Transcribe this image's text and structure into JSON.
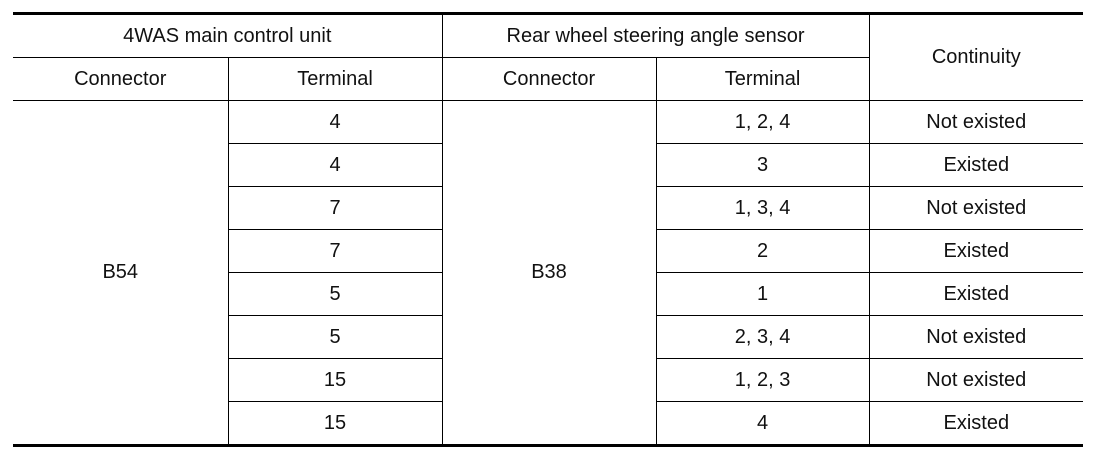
{
  "table": {
    "header": {
      "groups": [
        "4WAS main control unit",
        "Rear wheel steering angle sensor"
      ],
      "continuity": "Continuity",
      "columns": [
        "Connector",
        "Terminal",
        "Connector",
        "Terminal"
      ]
    },
    "main_connector": "B54",
    "sensor_connector": "B38",
    "rows": [
      [
        "4",
        "1, 2, 4",
        "Not existed"
      ],
      [
        "4",
        "3",
        "Existed"
      ],
      [
        "7",
        "1, 3, 4",
        "Not existed"
      ],
      [
        "7",
        "2",
        "Existed"
      ],
      [
        "5",
        "1",
        "Existed"
      ],
      [
        "5",
        "2, 3, 4",
        "Not existed"
      ],
      [
        "15",
        "1, 2, 3",
        "Not existed"
      ],
      [
        "15",
        "4",
        "Existed"
      ]
    ]
  }
}
